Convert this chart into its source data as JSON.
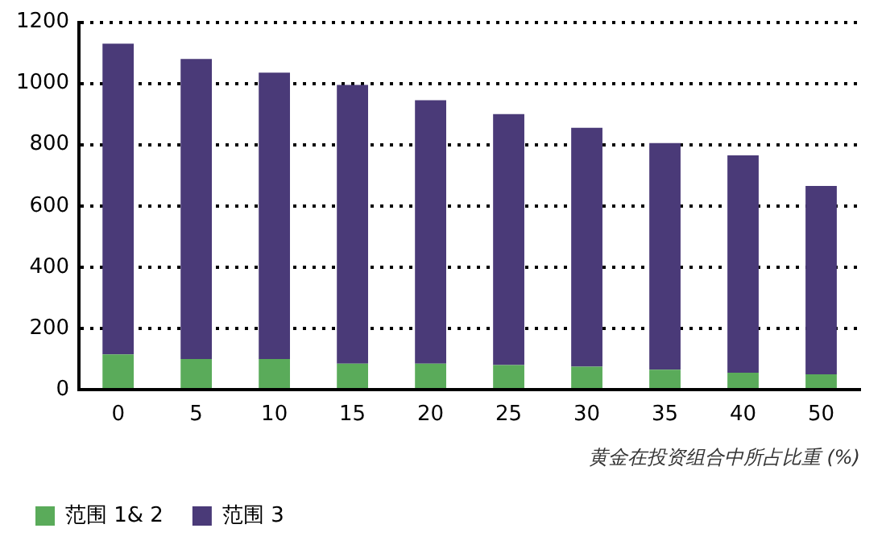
{
  "chart_data": {
    "type": "bar",
    "stacked": true,
    "xlabel": "黄金在投资组合中所占比重 (%)",
    "categories": [
      "0",
      "5",
      "10",
      "15",
      "20",
      "25",
      "30",
      "35",
      "40",
      "50"
    ],
    "series": [
      {
        "name": "范围 1& 2",
        "color": "#5aab5a",
        "values": [
          115,
          100,
          100,
          85,
          85,
          80,
          75,
          65,
          55,
          50
        ]
      },
      {
        "name": "范围 3",
        "color": "#4a3a78",
        "values": [
          1015,
          980,
          935,
          910,
          860,
          820,
          780,
          740,
          710,
          615
        ]
      }
    ],
    "ylim": [
      0,
      1200
    ],
    "yticks": [
      0,
      200,
      400,
      600,
      800,
      1000,
      1200
    ],
    "grid": "y",
    "legend": "bottom left"
  }
}
